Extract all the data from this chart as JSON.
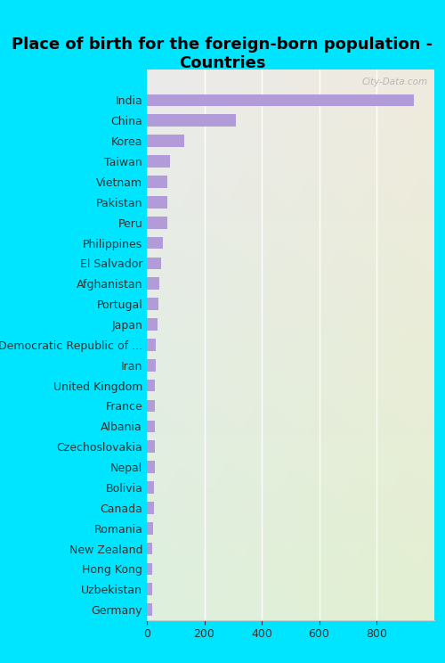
{
  "title": "Place of birth for the foreign-born population -\nCountries",
  "categories": [
    "Germany",
    "Uzbekistan",
    "Hong Kong",
    "New Zealand",
    "Romania",
    "Canada",
    "Bolivia",
    "Nepal",
    "Czechoslovakia",
    "Albania",
    "France",
    "United Kingdom",
    "Iran",
    "Democratic Republic of ...",
    "Japan",
    "Portugal",
    "Afghanistan",
    "El Salvador",
    "Philippines",
    "Peru",
    "Pakistan",
    "Vietnam",
    "Taiwan",
    "Korea",
    "China",
    "India"
  ],
  "values": [
    18,
    20,
    20,
    20,
    22,
    25,
    25,
    27,
    27,
    27,
    27,
    27,
    30,
    32,
    38,
    40,
    42,
    50,
    55,
    70,
    72,
    72,
    80,
    130,
    310,
    930
  ],
  "bar_color": "#b19cd9",
  "background_color": "#00e5ff",
  "xlim": [
    0,
    1000
  ],
  "xticks": [
    0,
    200,
    400,
    600,
    800
  ],
  "title_fontsize": 13,
  "label_fontsize": 9,
  "tick_fontsize": 9,
  "watermark": "City-Data.com"
}
